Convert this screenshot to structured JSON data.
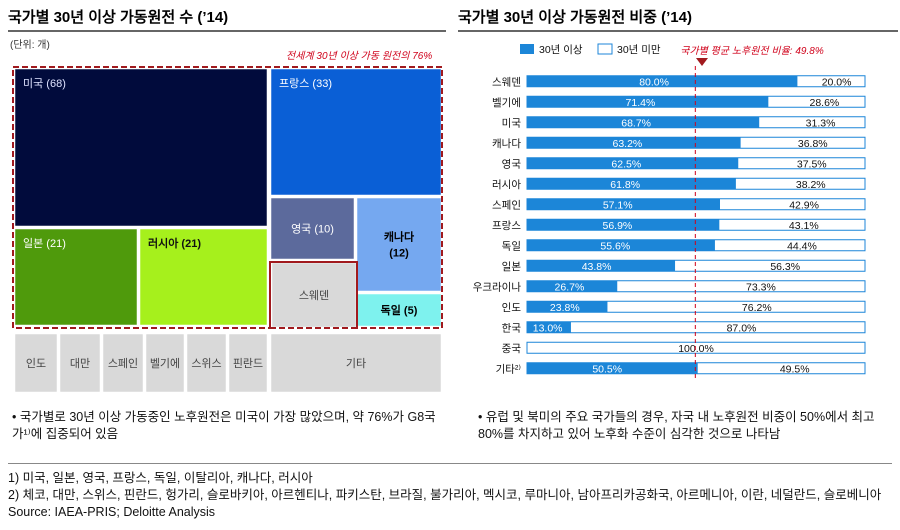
{
  "left": {
    "title": "국가별 30년 이상 가동원전 수 (’14)",
    "unit": "(단위: 개)",
    "annotation": "전세계 30년 이상 가동 원전의 76%",
    "bullet": "• 국가별로 30년 이상 가동중인 노후원전은 미국이 가장 많았으며, 약 76%가 G8국가¹⁾에 집중되어 있음"
  },
  "right": {
    "title": "국가별 30년 이상 가동원전 비중 (’14)",
    "legend": [
      "30년 이상",
      "30년 미만"
    ],
    "avg_label": "국가별 평균 노후원전 비율: 49.8%",
    "bullet": "• 유럽 및 북미의 주요 국가들의 경우, 자국 내 노후원전 비중이 50%에서 최고 80%를 차지하고 있어 노후화 수준이 심각한 것으로 나타남"
  },
  "footnotes": [
    "1) 미국, 일본, 영국, 프랑스, 독일, 이탈리아, 캐나다, 러시아",
    "2) 체코, 대만, 스위스, 핀란드, 헝가리, 슬로바키아, 아르헨티나, 파키스탄, 브라질, 불가리아, 멕시코, 루마니아, 남아프리카공화국, 아르메니아, 이란, 네덜란드, 슬로베니아",
    "Source: IAEA-PRIS; Deloitte Analysis"
  ],
  "chart_data": [
    {
      "type": "treemap",
      "title": "국가별 30년 이상 가동원전 수 (’14)",
      "items": [
        {
          "label": "미국 (68)",
          "value": 68,
          "color": "#010b3c"
        },
        {
          "label": "프랑스 (33)",
          "value": 33,
          "color": "#0a5fd6"
        },
        {
          "label": "일본 (21)",
          "value": 21,
          "color": "#4f9a0c"
        },
        {
          "label": "러시아 (21)",
          "value": 21,
          "color": "#a6f01c"
        },
        {
          "label": "영국 (10)",
          "value": 10,
          "color": "#5c6a9c"
        },
        {
          "label": "캐나다\n(12)",
          "value": 12,
          "color": "#75a8f0"
        },
        {
          "label": "스웨덴",
          "value": null,
          "color": "#d9d9d9"
        },
        {
          "label": "독일 (5)",
          "value": 5,
          "color": "#7ef2ee"
        },
        {
          "label": "인도",
          "value": null,
          "color": "#d9d9d9"
        },
        {
          "label": "대만",
          "value": null,
          "color": "#d9d9d9"
        },
        {
          "label": "스페인",
          "value": null,
          "color": "#d9d9d9"
        },
        {
          "label": "벨기에",
          "value": null,
          "color": "#d9d9d9"
        },
        {
          "label": "스위스",
          "value": null,
          "color": "#d9d9d9"
        },
        {
          "label": "핀란드",
          "value": null,
          "color": "#d9d9d9"
        },
        {
          "label": "기타",
          "value": null,
          "color": "#d9d9d9"
        }
      ]
    },
    {
      "type": "bar",
      "orientation": "horizontal",
      "stacked": "100%",
      "title": "국가별 30년 이상 가동원전 비중 (’14)",
      "categories": [
        "스웨덴",
        "벨기에",
        "미국",
        "캐나다",
        "영국",
        "러시아",
        "스페인",
        "프랑스",
        "독일",
        "일본",
        "우크라이나",
        "인도",
        "한국",
        "중국",
        "기타²⁾"
      ],
      "series": [
        {
          "name": "30년 이상",
          "color": "#1c86d8",
          "values": [
            80.0,
            71.4,
            68.7,
            63.2,
            62.5,
            61.8,
            57.1,
            56.9,
            55.6,
            43.8,
            26.7,
            23.8,
            13.0,
            0.0,
            50.5
          ],
          "labels": [
            "80.0%",
            "71.4%",
            "68.7%",
            "63.2%",
            "62.5%",
            "61.8%",
            "57.1%",
            "56.9%",
            "55.6%",
            "43.8%",
            "26.7%",
            "23.8%",
            "13.0%",
            "",
            "50.5%"
          ]
        },
        {
          "name": "30년 미만",
          "color": "#ffffff",
          "values": [
            20.0,
            28.6,
            31.3,
            36.8,
            37.5,
            38.2,
            42.9,
            43.1,
            44.4,
            56.3,
            73.3,
            76.2,
            87.0,
            100.0,
            49.5
          ],
          "labels": [
            "20.0%",
            "28.6%",
            "31.3%",
            "36.8%",
            "37.5%",
            "38.2%",
            "42.9%",
            "43.1%",
            "44.4%",
            "56.3%",
            "73.3%",
            "76.2%",
            "87.0%",
            "100.0%",
            "49.5%"
          ]
        }
      ],
      "average_line": 49.8,
      "xlim": [
        0,
        100
      ]
    }
  ]
}
